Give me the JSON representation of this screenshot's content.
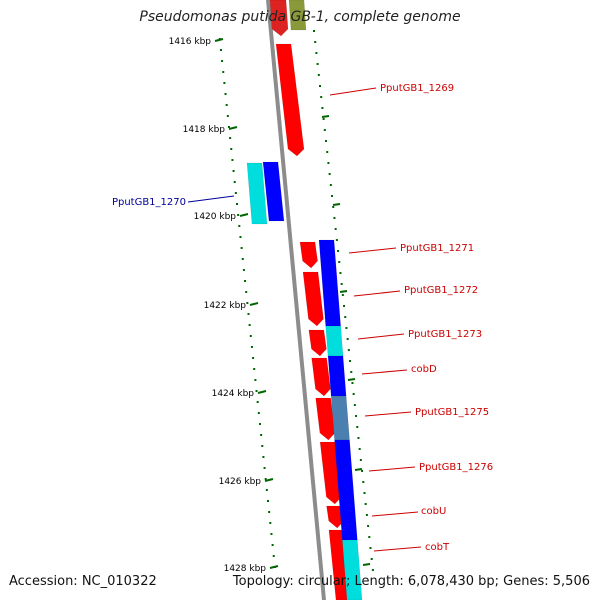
{
  "title": "Pseudomonas putida GB-1, complete genome",
  "footer": {
    "accession": "Accession: NC_010322",
    "summary": "Topology: circular; Length: 6,078,430 bp; Genes: 5,506"
  },
  "colors": {
    "forward_gene": "#ff0000",
    "reverse_gene": "#0000ff",
    "alt_gene": "#00dddd",
    "backbone": "#8c8c8c",
    "tick": "#006600",
    "label_forward": "#cc0000",
    "label_reverse": "#000099"
  },
  "ticks": [
    {
      "label": "1416 kbp",
      "kbp": 1416
    },
    {
      "label": "1418 kbp",
      "kbp": 1418
    },
    {
      "label": "1420 kbp",
      "kbp": 1420
    },
    {
      "label": "1422 kbp",
      "kbp": 1422
    },
    {
      "label": "1424 kbp",
      "kbp": 1424
    },
    {
      "label": "1426 kbp",
      "kbp": 1426
    },
    {
      "label": "1428 kbp",
      "kbp": 1428
    }
  ],
  "gene_labels": [
    {
      "name": "PputGB1_1269",
      "strand": "forward"
    },
    {
      "name": "PputGB1_1270",
      "strand": "reverse"
    },
    {
      "name": "PputGB1_1271",
      "strand": "forward"
    },
    {
      "name": "PputGB1_1272",
      "strand": "forward"
    },
    {
      "name": "PputGB1_1273",
      "strand": "forward"
    },
    {
      "name": "cobD",
      "strand": "forward"
    },
    {
      "name": "PputGB1_1275",
      "strand": "forward"
    },
    {
      "name": "PputGB1_1276",
      "strand": "forward"
    },
    {
      "name": "cobU",
      "strand": "forward"
    },
    {
      "name": "cobT",
      "strand": "forward"
    }
  ]
}
